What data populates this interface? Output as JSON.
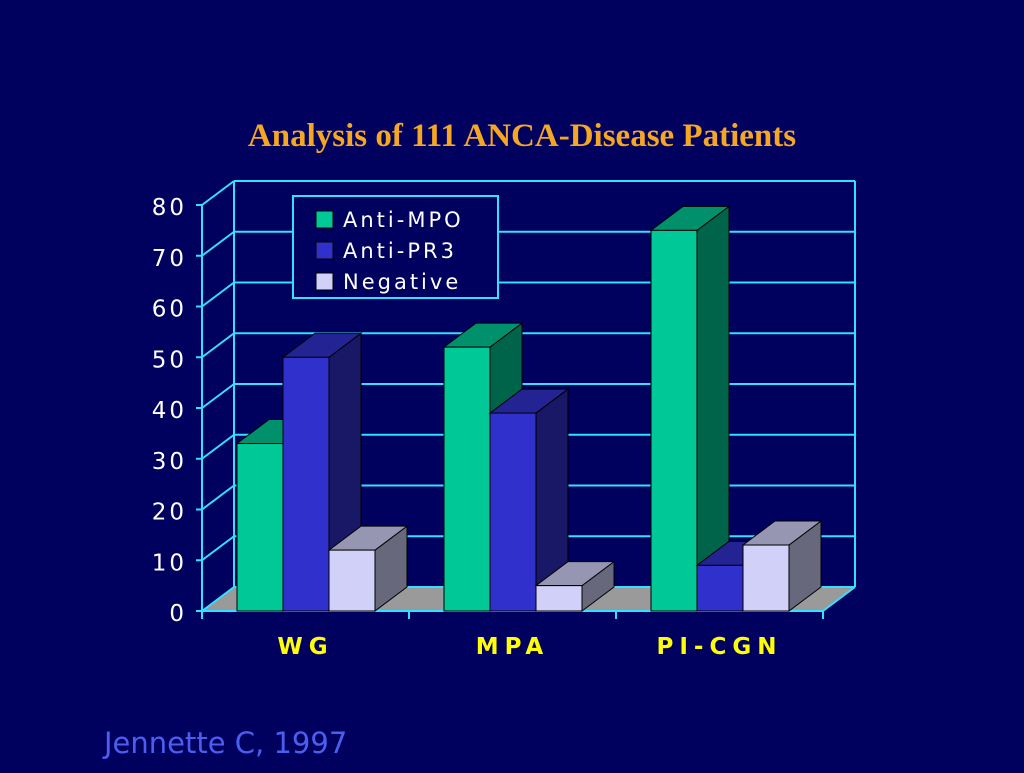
{
  "slide": {
    "citation": "Jennette C, 1997"
  },
  "chart_data": {
    "type": "bar",
    "title": "Analysis of 111 ANCA-Disease Patients",
    "xlabel": "",
    "ylabel": "",
    "categories": [
      "WG",
      "MPA",
      "PI-CGN"
    ],
    "series": [
      {
        "name": "Anti-MPO",
        "color": "#00c896",
        "values": [
          33,
          52,
          75
        ]
      },
      {
        "name": "Anti-PR3",
        "color": "#3030cc",
        "values": [
          50,
          39,
          9
        ]
      },
      {
        "name": "Negative",
        "color": "#d0d0f8",
        "values": [
          12,
          5,
          13
        ]
      }
    ],
    "ylim": [
      0,
      80
    ],
    "yticks": [
      "0",
      "10",
      "20",
      "30",
      "40",
      "50",
      "60",
      "70",
      "80"
    ],
    "grid": true,
    "legend_position": "top-left",
    "colors": {
      "background": "#00005f",
      "title": "#f5a623",
      "tick_labels": "#ffffff",
      "category_labels": "#ffff00",
      "grid": "#33e0ff",
      "floor": "#9a9a9a"
    }
  }
}
